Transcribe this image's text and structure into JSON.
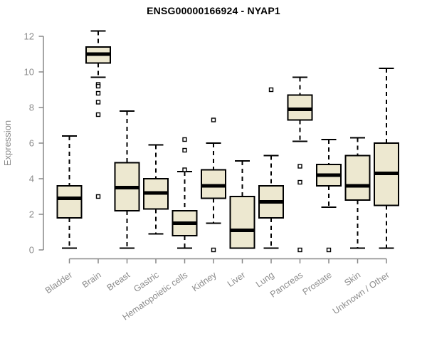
{
  "chart_data": {
    "type": "boxplot",
    "title": "ENSG00000166924 - NYAP1",
    "xlabel": "",
    "ylabel": "Expression",
    "ylim": [
      0,
      12
    ],
    "yticks": [
      0,
      2,
      4,
      6,
      8,
      10,
      12
    ],
    "grid": "off",
    "legend": "none",
    "categories": [
      "Bladder",
      "Brain",
      "Breast",
      "Gastric",
      "Hematopoietic cells",
      "Kidney",
      "Liver",
      "Lung",
      "Pancreas",
      "Prostate",
      "Skin",
      "Unknown / Other"
    ],
    "series": [
      {
        "category": "Bladder",
        "min": 0.1,
        "q1": 1.8,
        "median": 2.9,
        "q3": 3.6,
        "max": 6.4,
        "outliers": []
      },
      {
        "category": "Brain",
        "min": 9.7,
        "q1": 10.5,
        "median": 11.0,
        "q3": 11.4,
        "max": 12.3,
        "outliers": [
          9.3,
          9.2,
          8.8,
          8.3,
          7.6,
          3.0
        ]
      },
      {
        "category": "Breast",
        "min": 0.1,
        "q1": 2.2,
        "median": 3.5,
        "q3": 4.9,
        "max": 7.8,
        "outliers": []
      },
      {
        "category": "Gastric",
        "min": 0.9,
        "q1": 2.3,
        "median": 3.2,
        "q3": 4.0,
        "max": 5.9,
        "outliers": []
      },
      {
        "category": "Hematopoietic cells",
        "min": 0.1,
        "q1": 0.8,
        "median": 1.5,
        "q3": 2.2,
        "max": 4.4,
        "outliers": [
          6.2,
          5.6,
          4.5
        ]
      },
      {
        "category": "Kidney",
        "min": 1.5,
        "q1": 2.9,
        "median": 3.6,
        "q3": 4.5,
        "max": 6.0,
        "outliers": [
          7.3,
          0.0
        ]
      },
      {
        "category": "Liver",
        "min": 0.1,
        "q1": 0.1,
        "median": 1.1,
        "q3": 3.0,
        "max": 5.0,
        "outliers": []
      },
      {
        "category": "Lung",
        "min": 0.1,
        "q1": 1.8,
        "median": 2.7,
        "q3": 3.6,
        "max": 5.3,
        "outliers": [
          9.0
        ]
      },
      {
        "category": "Pancreas",
        "min": 6.1,
        "q1": 7.3,
        "median": 7.9,
        "q3": 8.7,
        "max": 9.7,
        "outliers": [
          4.7,
          3.8,
          0.0
        ]
      },
      {
        "category": "Prostate",
        "min": 2.4,
        "q1": 3.6,
        "median": 4.2,
        "q3": 4.8,
        "max": 6.2,
        "outliers": [
          0.0
        ]
      },
      {
        "category": "Skin",
        "min": 0.1,
        "q1": 2.8,
        "median": 3.6,
        "q3": 5.3,
        "max": 6.3,
        "outliers": []
      },
      {
        "category": "Unknown / Other",
        "min": 0.1,
        "q1": 2.5,
        "median": 4.3,
        "q3": 6.0,
        "max": 10.2,
        "outliers": []
      }
    ],
    "colors": {
      "box_fill": "#EDE8D0",
      "box_border": "#000000",
      "median": "#000000",
      "whisker": "#000000",
      "axis": "#888888",
      "tick_label": "#8c8c8c",
      "title": "#000000",
      "background": "#ffffff"
    }
  }
}
